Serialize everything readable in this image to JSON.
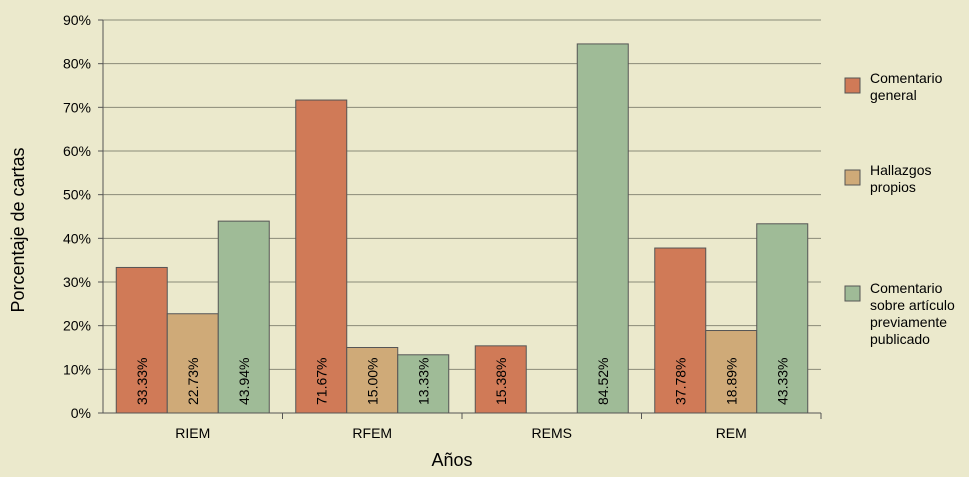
{
  "chart_data": {
    "type": "bar",
    "title": "",
    "xlabel": "Años",
    "ylabel": "Porcentaje de cartas",
    "ylim": [
      0,
      90
    ],
    "yticks": [
      0,
      10,
      20,
      30,
      40,
      50,
      60,
      70,
      80,
      90
    ],
    "ytick_suffix": "%",
    "grid": true,
    "legend_position": "right",
    "categories": [
      "RIEM",
      "RFEM",
      "REMS",
      "REM"
    ],
    "series": [
      {
        "name": "Comentario general",
        "legend_lines": [
          "Comentario",
          "general"
        ],
        "color": "#d07a57",
        "values": [
          33.33,
          71.67,
          15.38,
          37.78
        ],
        "labels": [
          "33.33%",
          "71.67%",
          "15.38%",
          "37.78%"
        ]
      },
      {
        "name": "Hallazgos propios",
        "legend_lines": [
          "Hallazgos",
          "propios"
        ],
        "color": "#cfaa78",
        "values": [
          22.73,
          15.0,
          null,
          18.89
        ],
        "labels": [
          "22.73%",
          "15.00%",
          "",
          "18.89%"
        ]
      },
      {
        "name": "Comentario sobre artículo previamente publicado",
        "legend_lines": [
          "Comentario",
          "sobre artículo",
          "previamente",
          "publicado"
        ],
        "color": "#9fbb97",
        "values": [
          43.94,
          13.33,
          84.52,
          43.33
        ],
        "labels": [
          "43.94%",
          "13.33%",
          "84.52%",
          "43.33%"
        ]
      }
    ]
  }
}
